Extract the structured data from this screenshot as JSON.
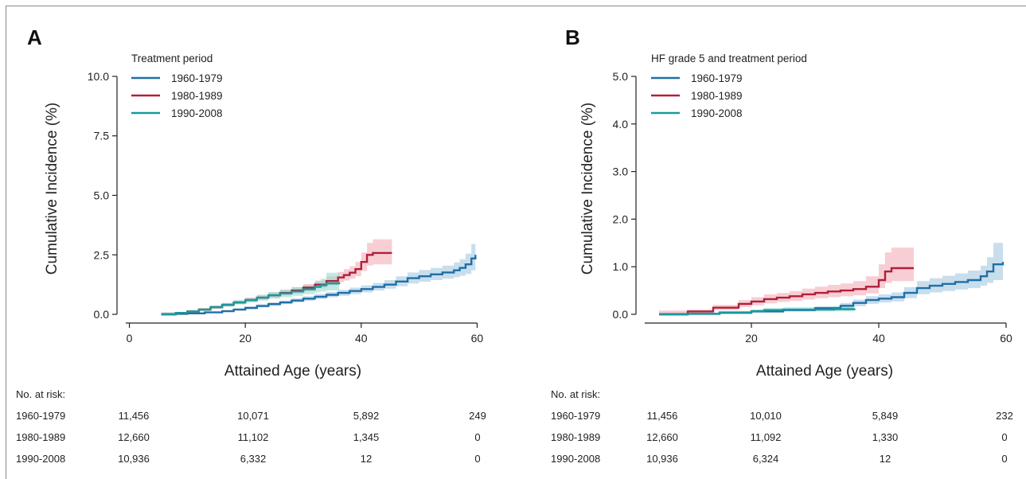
{
  "chart_data": [
    {
      "type": "line",
      "panel_label": "A",
      "xlabel": "Attained Age (years)",
      "ylabel": "Cumulative Incidence (%)",
      "xlim": [
        -2,
        62
      ],
      "ylim": [
        -0.4,
        10.4
      ],
      "xticks": [
        0,
        20,
        40,
        60
      ],
      "yticks": [
        0,
        2.5,
        5,
        7.5,
        10
      ],
      "ytick_labels": [
        "0.0",
        "2.5",
        "5.0",
        "7.5",
        "10.0"
      ],
      "legend": {
        "title": "Treatment period",
        "placement": "top-left"
      },
      "series": [
        {
          "name": "1960-1979",
          "color": "#1f6fa6",
          "band_color": "#9cc3de",
          "x": [
            5.5,
            8,
            10,
            13,
            16,
            18,
            20,
            22,
            24,
            26,
            28,
            30,
            32,
            34,
            36,
            38,
            40,
            42,
            44,
            46,
            48,
            50,
            52,
            54,
            56,
            57,
            58,
            59,
            59.7
          ],
          "y": [
            0,
            0.02,
            0.04,
            0.08,
            0.13,
            0.2,
            0.27,
            0.35,
            0.43,
            0.5,
            0.58,
            0.66,
            0.74,
            0.82,
            0.9,
            0.98,
            1.06,
            1.15,
            1.25,
            1.38,
            1.52,
            1.6,
            1.68,
            1.76,
            1.85,
            1.95,
            2.1,
            2.35,
            2.5
          ],
          "lower": [
            0,
            0.01,
            0.03,
            0.06,
            0.1,
            0.16,
            0.22,
            0.29,
            0.36,
            0.43,
            0.5,
            0.57,
            0.64,
            0.71,
            0.78,
            0.85,
            0.92,
            1.0,
            1.08,
            1.18,
            1.3,
            1.37,
            1.44,
            1.5,
            1.56,
            1.62,
            1.7,
            1.85,
            1.95
          ],
          "upper": [
            0.05,
            0.05,
            0.07,
            0.11,
            0.17,
            0.25,
            0.33,
            0.42,
            0.51,
            0.58,
            0.67,
            0.76,
            0.85,
            0.94,
            1.03,
            1.12,
            1.22,
            1.32,
            1.44,
            1.6,
            1.76,
            1.86,
            1.95,
            2.05,
            2.18,
            2.32,
            2.55,
            2.95,
            3.3
          ]
        },
        {
          "name": "1980-1989",
          "color": "#b0203a",
          "band_color": "#f0a6b1",
          "x": [
            5.5,
            8,
            10,
            12,
            14,
            16,
            18,
            20,
            22,
            24,
            26,
            28,
            30,
            32,
            34,
            36,
            37,
            38,
            39,
            40,
            41,
            42,
            45.3
          ],
          "y": [
            0,
            0.05,
            0.12,
            0.2,
            0.3,
            0.4,
            0.5,
            0.6,
            0.7,
            0.8,
            0.9,
            1.0,
            1.12,
            1.25,
            1.4,
            1.55,
            1.65,
            1.75,
            1.9,
            2.2,
            2.5,
            2.58,
            2.58
          ],
          "lower": [
            0,
            0.02,
            0.08,
            0.15,
            0.24,
            0.33,
            0.42,
            0.52,
            0.61,
            0.7,
            0.79,
            0.88,
            0.98,
            1.1,
            1.22,
            1.35,
            1.42,
            1.5,
            1.6,
            1.82,
            2.05,
            2.1,
            2.1
          ],
          "upper": [
            0.08,
            0.1,
            0.17,
            0.26,
            0.37,
            0.48,
            0.59,
            0.7,
            0.81,
            0.92,
            1.03,
            1.14,
            1.27,
            1.42,
            1.6,
            1.78,
            1.9,
            2.02,
            2.2,
            2.6,
            3.0,
            3.15,
            3.15
          ]
        },
        {
          "name": "1990-2008",
          "color": "#1a9a9a",
          "band_color": "#8fd8cf",
          "x": [
            5.5,
            8,
            10,
            12,
            14,
            16,
            18,
            20,
            22,
            24,
            26,
            28,
            30,
            32,
            33,
            34,
            36.2
          ],
          "y": [
            0,
            0.06,
            0.12,
            0.2,
            0.3,
            0.4,
            0.5,
            0.6,
            0.7,
            0.8,
            0.88,
            0.96,
            1.05,
            1.15,
            1.22,
            1.3,
            1.35
          ],
          "lower": [
            0,
            0.03,
            0.08,
            0.15,
            0.24,
            0.33,
            0.42,
            0.5,
            0.58,
            0.66,
            0.72,
            0.78,
            0.85,
            0.92,
            0.96,
            1.0,
            1.0
          ],
          "upper": [
            0.08,
            0.1,
            0.17,
            0.26,
            0.37,
            0.48,
            0.59,
            0.7,
            0.82,
            0.94,
            1.04,
            1.14,
            1.25,
            1.38,
            1.5,
            1.75,
            1.75
          ]
        }
      ],
      "risk_table": {
        "title": "No. at risk:",
        "ages": [
          0,
          20,
          40,
          60
        ],
        "rows": [
          {
            "label": "1960-1979",
            "values": [
              "11,456",
              "10,071",
              "5,892",
              "249"
            ]
          },
          {
            "label": "1980-1989",
            "values": [
              "12,660",
              "11,102",
              "1,345",
              "0"
            ]
          },
          {
            "label": "1990-2008",
            "values": [
              "10,936",
              "6,332",
              "12",
              "0"
            ]
          }
        ]
      }
    },
    {
      "type": "line",
      "panel_label": "B",
      "xlabel": "Attained Age (years)",
      "ylabel": "Cumulative Incidence (%)",
      "xlim": [
        2,
        62
      ],
      "ylim": [
        -0.2,
        5.2
      ],
      "xticks": [
        20,
        40,
        60
      ],
      "yticks": [
        0,
        1,
        2,
        3,
        4,
        5
      ],
      "ytick_labels": [
        "0.0",
        "1.0",
        "2.0",
        "3.0",
        "4.0",
        "5.0"
      ],
      "legend": {
        "title": "HF grade 5 and treatment period",
        "placement": "top-left"
      },
      "series": [
        {
          "name": "1960-1979",
          "color": "#1f6fa6",
          "band_color": "#9cc3de",
          "x": [
            5.5,
            10,
            15,
            20,
            25,
            30,
            34,
            36,
            38,
            40,
            42,
            44,
            46,
            48,
            50,
            52,
            54,
            56,
            57,
            58,
            59.5
          ],
          "y": [
            0,
            0.01,
            0.03,
            0.06,
            0.09,
            0.13,
            0.18,
            0.24,
            0.3,
            0.33,
            0.36,
            0.45,
            0.55,
            0.6,
            0.64,
            0.68,
            0.72,
            0.8,
            0.9,
            1.05,
            1.1
          ],
          "lower": [
            0,
            0,
            0.02,
            0.04,
            0.06,
            0.09,
            0.13,
            0.17,
            0.22,
            0.25,
            0.27,
            0.34,
            0.42,
            0.46,
            0.49,
            0.52,
            0.55,
            0.6,
            0.66,
            0.72,
            0.72
          ],
          "upper": [
            0.03,
            0.03,
            0.05,
            0.08,
            0.12,
            0.17,
            0.24,
            0.31,
            0.38,
            0.42,
            0.46,
            0.57,
            0.7,
            0.76,
            0.81,
            0.86,
            0.92,
            1.02,
            1.2,
            1.5,
            1.7
          ]
        },
        {
          "name": "1980-1989",
          "color": "#b0203a",
          "band_color": "#f0a6b1",
          "x": [
            5.5,
            10,
            14,
            18,
            20,
            22,
            24,
            26,
            28,
            30,
            32,
            34,
            36,
            38,
            40,
            41,
            42,
            45.5
          ],
          "y": [
            0,
            0.06,
            0.14,
            0.22,
            0.27,
            0.32,
            0.35,
            0.38,
            0.42,
            0.45,
            0.48,
            0.5,
            0.53,
            0.58,
            0.72,
            0.9,
            0.97,
            0.97
          ],
          "lower": [
            0,
            0.03,
            0.09,
            0.15,
            0.19,
            0.23,
            0.26,
            0.28,
            0.31,
            0.34,
            0.36,
            0.38,
            0.4,
            0.44,
            0.55,
            0.66,
            0.7,
            0.7
          ],
          "upper": [
            0.08,
            0.1,
            0.2,
            0.3,
            0.36,
            0.42,
            0.45,
            0.49,
            0.54,
            0.58,
            0.62,
            0.65,
            0.7,
            0.8,
            1.05,
            1.3,
            1.4,
            1.4
          ]
        },
        {
          "name": "1990-2008",
          "color": "#1a9a9a",
          "band_color": "#8fd8cf",
          "x": [
            5.5,
            10,
            15,
            20,
            22,
            25,
            30,
            33,
            36.2
          ],
          "y": [
            0,
            0.01,
            0.04,
            0.07,
            0.09,
            0.1,
            0.1,
            0.11,
            0.12
          ],
          "lower": [
            0,
            0,
            0.02,
            0.04,
            0.05,
            0.06,
            0.06,
            0.06,
            0.06
          ],
          "upper": [
            0.03,
            0.03,
            0.06,
            0.1,
            0.13,
            0.15,
            0.15,
            0.17,
            0.2
          ]
        }
      ],
      "risk_table": {
        "title": "No. at risk:",
        "ages": [
          5,
          20,
          40,
          60
        ],
        "rows": [
          {
            "label": "1960-1979",
            "values": [
              "11,456",
              "10,010",
              "5,849",
              "232"
            ]
          },
          {
            "label": "1980-1989",
            "values": [
              "12,660",
              "11,092",
              "1,330",
              "0"
            ]
          },
          {
            "label": "1990-2008",
            "values": [
              "10,936",
              "6,324",
              "12",
              "0"
            ]
          }
        ]
      }
    }
  ]
}
